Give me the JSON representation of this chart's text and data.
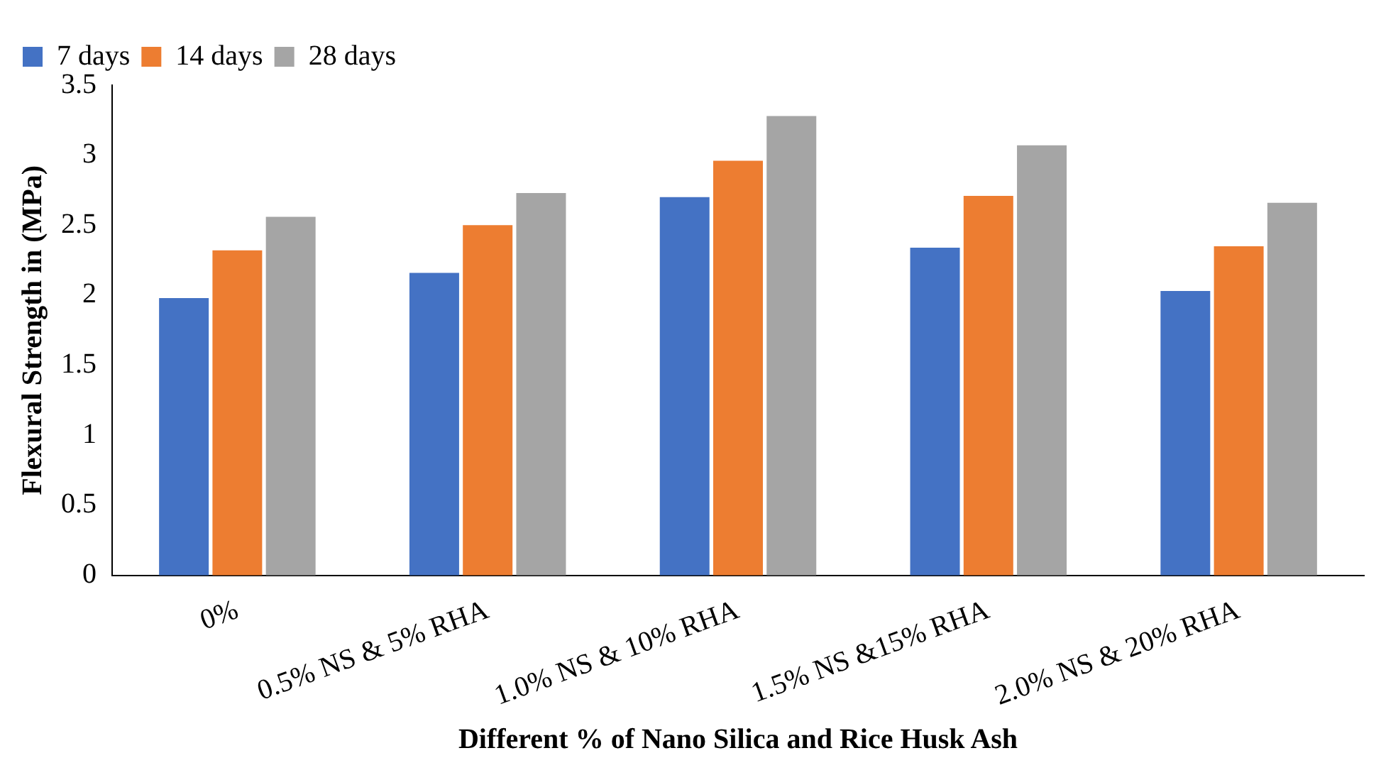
{
  "chart_data": {
    "type": "bar",
    "xlabel": "Different % of Nano Silica and Rice Husk Ash",
    "ylabel": "Flexural Strength in (MPa)",
    "categories": [
      "0%",
      "0.5% NS & 5% RHA",
      "1.0% NS & 10% RHA",
      "1.5% NS &15% RHA",
      "2.0% NS & 20% RHA"
    ],
    "series": [
      {
        "name": "7 days",
        "color": "#4472c4",
        "values": [
          1.98,
          2.16,
          2.7,
          2.34,
          2.03
        ]
      },
      {
        "name": "14 days",
        "color": "#ed7d31",
        "values": [
          2.32,
          2.5,
          2.96,
          2.71,
          2.35
        ]
      },
      {
        "name": "28 days",
        "color": "#a5a5a5",
        "values": [
          2.56,
          2.73,
          3.28,
          3.07,
          2.66
        ]
      }
    ],
    "ylim": [
      0,
      3.5
    ],
    "yticks": [
      0,
      0.5,
      1,
      1.5,
      2,
      2.5,
      3,
      3.5
    ],
    "grid": false,
    "legend": "top left"
  }
}
